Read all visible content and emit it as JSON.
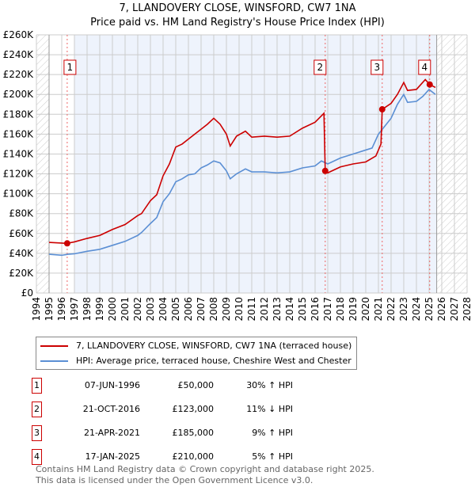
{
  "chart_data": {
    "type": "line",
    "title": "7, LLANDOVERY CLOSE, WINSFORD, CW7 1NA",
    "subtitle": "Price paid vs. HM Land Registry's House Price Index (HPI)",
    "xlim": [
      1994,
      2028
    ],
    "ylim": [
      0,
      260000
    ],
    "x_ticks": [
      "1994",
      "1995",
      "1996",
      "1997",
      "1998",
      "1999",
      "2000",
      "2001",
      "2002",
      "2003",
      "2004",
      "2005",
      "2006",
      "2007",
      "2008",
      "2009",
      "2010",
      "2011",
      "2012",
      "2013",
      "2014",
      "2015",
      "2016",
      "2017",
      "2018",
      "2019",
      "2020",
      "2021",
      "2022",
      "2023",
      "2024",
      "2025",
      "2026",
      "2027",
      "2028"
    ],
    "y_ticks": [
      "£0",
      "£20K",
      "£40K",
      "£60K",
      "£80K",
      "£100K",
      "£120K",
      "£140K",
      "£160K",
      "£180K",
      "£200K",
      "£220K",
      "£240K",
      "£260K"
    ],
    "grid": true,
    "series": [
      {
        "name": "7, LLANDOVERY CLOSE, WINSFORD, CW7 1NA (terraced house)",
        "color": "#cc0000",
        "x": [
          1995,
          1996.4,
          1997,
          1998,
          1999,
          2000,
          2001,
          2002,
          2002.3,
          2003,
          2003.5,
          2004,
          2004.5,
          2005,
          2005.5,
          2006,
          2007,
          2007.5,
          2008,
          2008.5,
          2009,
          2009.3,
          2009.8,
          2010.5,
          2011,
          2012,
          2013,
          2014,
          2015,
          2016,
          2016.7,
          2016.8,
          2017,
          2018,
          2019,
          2020,
          2020.8,
          2021.2,
          2021.3,
          2022,
          2022.5,
          2023,
          2023.3,
          2024,
          2024.7,
          2025.05,
          2025.5
        ],
        "y": [
          51000,
          50000,
          51500,
          55000,
          58000,
          64000,
          69000,
          78000,
          80000,
          93000,
          99000,
          118000,
          130000,
          147000,
          150000,
          155000,
          165000,
          170000,
          176000,
          170000,
          160000,
          148000,
          158000,
          163000,
          157000,
          158000,
          157000,
          158000,
          166000,
          172000,
          181000,
          123000,
          121000,
          127000,
          130000,
          132000,
          138000,
          150000,
          185000,
          191000,
          200000,
          212000,
          204000,
          205000,
          215000,
          210000,
          207000
        ]
      },
      {
        "name": "HPI: Average price, terraced house, Cheshire West and Chester",
        "color": "#5b8fd4",
        "x": [
          1995,
          1996,
          1996.5,
          1997,
          1998,
          1999,
          2000,
          2001,
          2002,
          2002.3,
          2003,
          2003.5,
          2004,
          2004.5,
          2005,
          2005.5,
          2006,
          2006.5,
          2007,
          2007.5,
          2008,
          2008.5,
          2009,
          2009.3,
          2009.8,
          2010.5,
          2011,
          2012,
          2013,
          2014,
          2015,
          2016,
          2016.5,
          2017,
          2018,
          2019,
          2020,
          2020.5,
          2021,
          2021.5,
          2022,
          2022.5,
          2023,
          2023.3,
          2024,
          2024.5,
          2025,
          2025.5
        ],
        "y": [
          39000,
          38000,
          39000,
          39500,
          42000,
          44000,
          48000,
          52000,
          58000,
          61000,
          70000,
          76000,
          92000,
          100000,
          112000,
          115000,
          119000,
          120000,
          126000,
          129000,
          133000,
          131000,
          123000,
          115000,
          120000,
          125000,
          122000,
          122000,
          121000,
          122000,
          126000,
          128000,
          133000,
          130000,
          136000,
          140000,
          144000,
          146000,
          160000,
          168000,
          176000,
          190000,
          200000,
          192000,
          193000,
          198000,
          205000,
          200000
        ]
      }
    ],
    "sales": [
      {
        "label": "1",
        "date": "07-JUN-1996",
        "x": 1996.43,
        "price": "£50,000",
        "value": 50000,
        "hpi": "30% ↑ HPI"
      },
      {
        "label": "2",
        "date": "21-OCT-2016",
        "x": 2016.8,
        "price": "£123,000",
        "value": 123000,
        "hpi": "11% ↓ HPI"
      },
      {
        "label": "3",
        "date": "21-APR-2021",
        "x": 2021.3,
        "price": "£185,000",
        "value": 185000,
        "hpi": "9% ↑ HPI"
      },
      {
        "label": "4",
        "date": "17-JAN-2025",
        "x": 2025.05,
        "price": "£210,000",
        "value": 210000,
        "hpi": "5% ↑ HPI"
      }
    ],
    "hatch_before": 1995,
    "hatch_after": 2025.6,
    "shade_from": 1997
  },
  "footer": {
    "line1": "Contains HM Land Registry data © Crown copyright and database right 2025.",
    "line2": "This data is licensed under the Open Government Licence v3.0."
  }
}
